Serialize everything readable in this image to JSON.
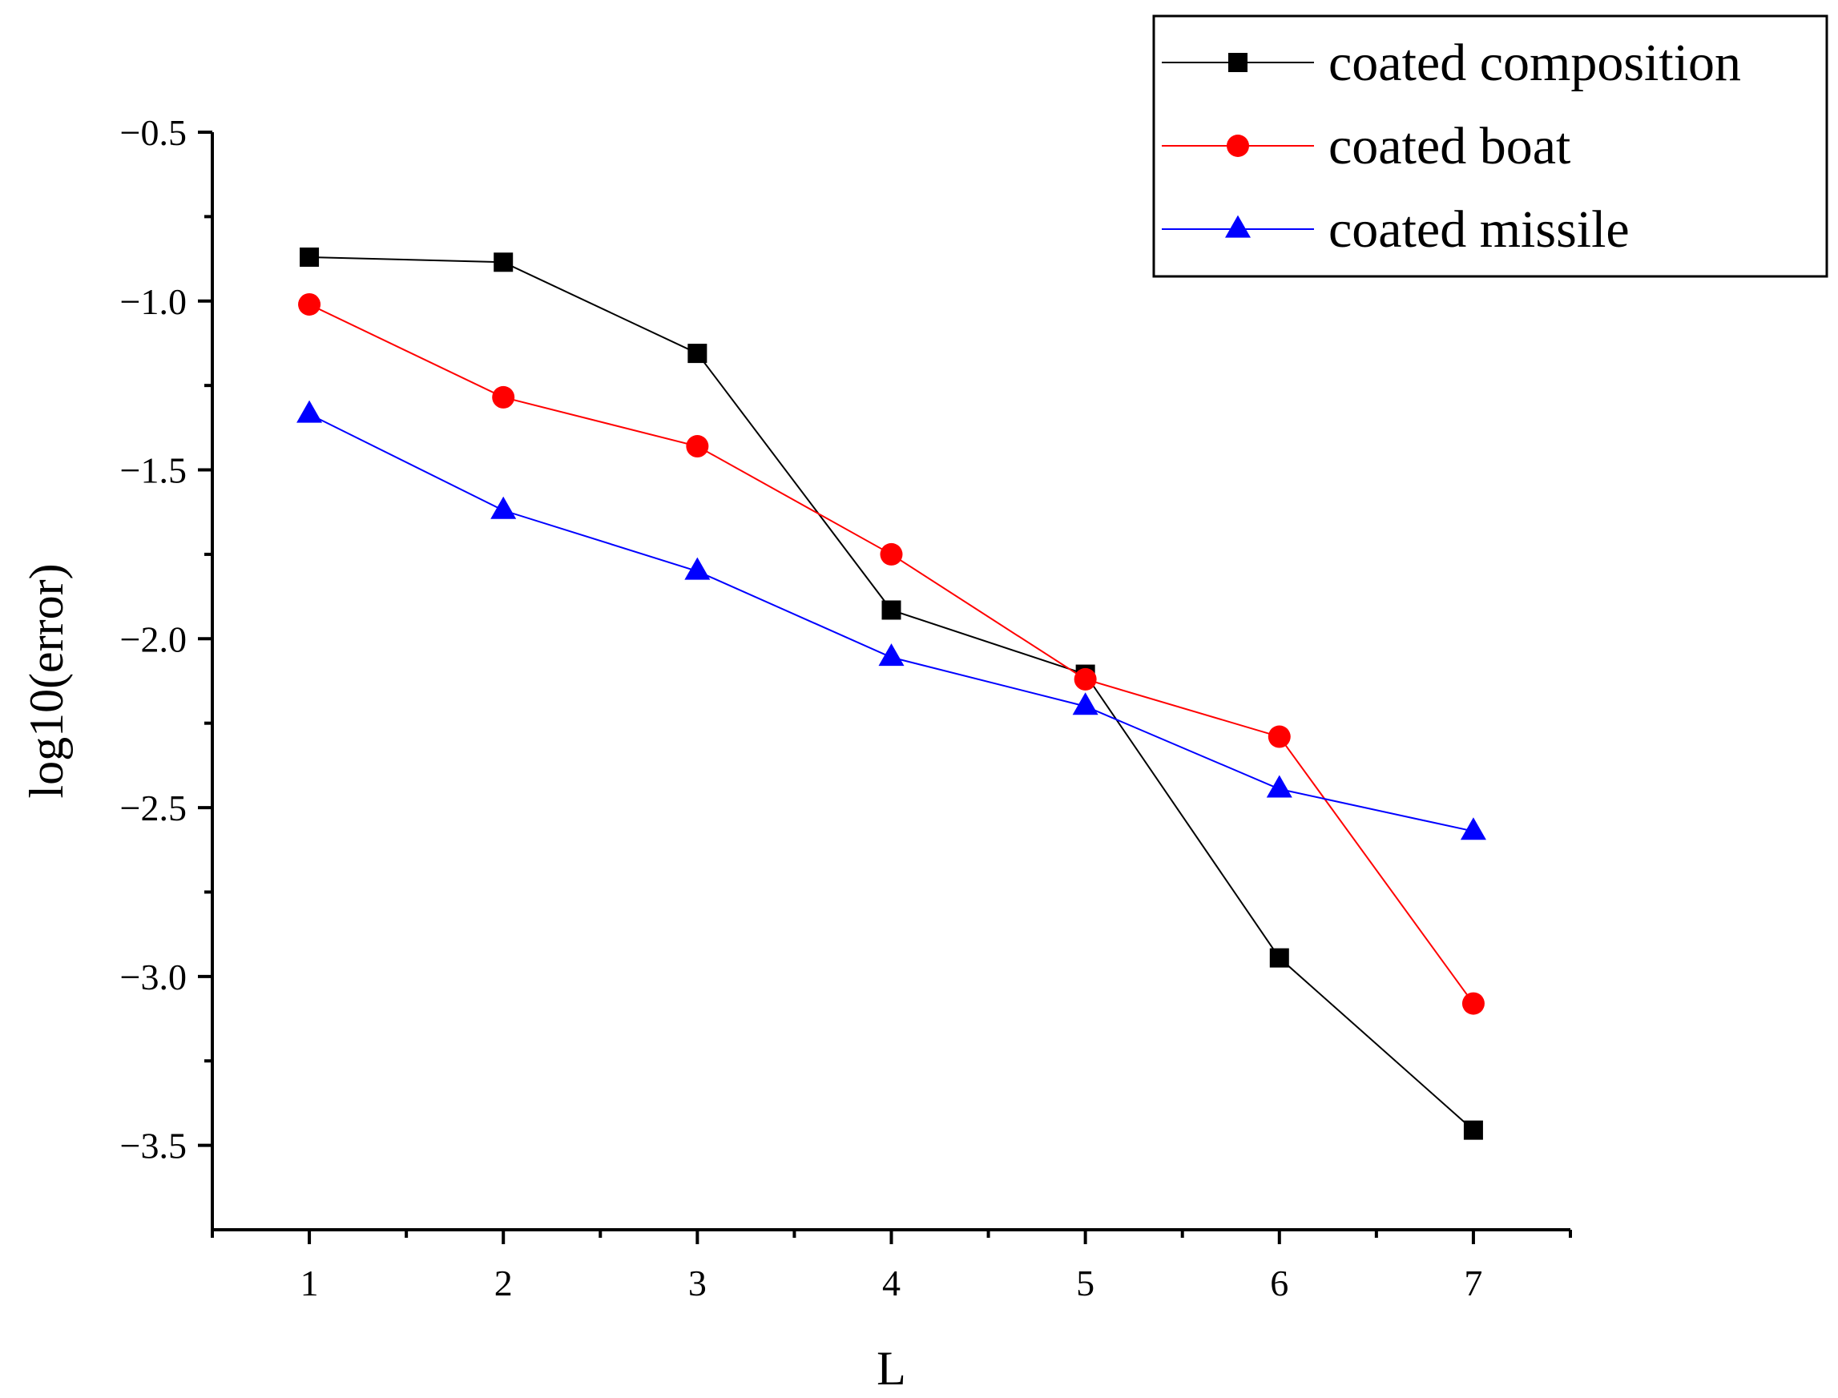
{
  "chart_data": {
    "type": "line",
    "title": "",
    "xlabel": "L",
    "ylabel": "log10(error)",
    "x": [
      1,
      2,
      3,
      4,
      5,
      6,
      7
    ],
    "xlim": [
      0.5,
      7.5
    ],
    "ylim": [
      -3.75,
      -0.5
    ],
    "x_ticks": [
      1,
      2,
      3,
      4,
      5,
      6,
      7
    ],
    "x_tick_labels": [
      "1",
      "2",
      "3",
      "4",
      "5",
      "6",
      "7"
    ],
    "y_ticks": [
      -0.5,
      -1.0,
      -1.5,
      -2.0,
      -2.5,
      -3.0,
      -3.5
    ],
    "y_tick_labels": [
      "−0.5",
      "−1.0",
      "−1.5",
      "−2.0",
      "−2.5",
      "−3.0",
      "−3.5"
    ],
    "grid": false,
    "legend_position": "top-right",
    "series": [
      {
        "name": "coated composition",
        "color": "#000000",
        "marker": "square",
        "values": [
          -0.87,
          -0.885,
          -1.155,
          -1.915,
          -2.105,
          -2.945,
          -3.455
        ]
      },
      {
        "name": "coated boat",
        "color": "#ff0000",
        "marker": "circle",
        "values": [
          -1.01,
          -1.285,
          -1.43,
          -1.75,
          -2.12,
          -2.29,
          -3.08
        ]
      },
      {
        "name": "coated missile",
        "color": "#0000ff",
        "marker": "triangle",
        "values": [
          -1.335,
          -1.62,
          -1.8,
          -2.055,
          -2.2,
          -2.445,
          -2.57
        ]
      }
    ]
  }
}
